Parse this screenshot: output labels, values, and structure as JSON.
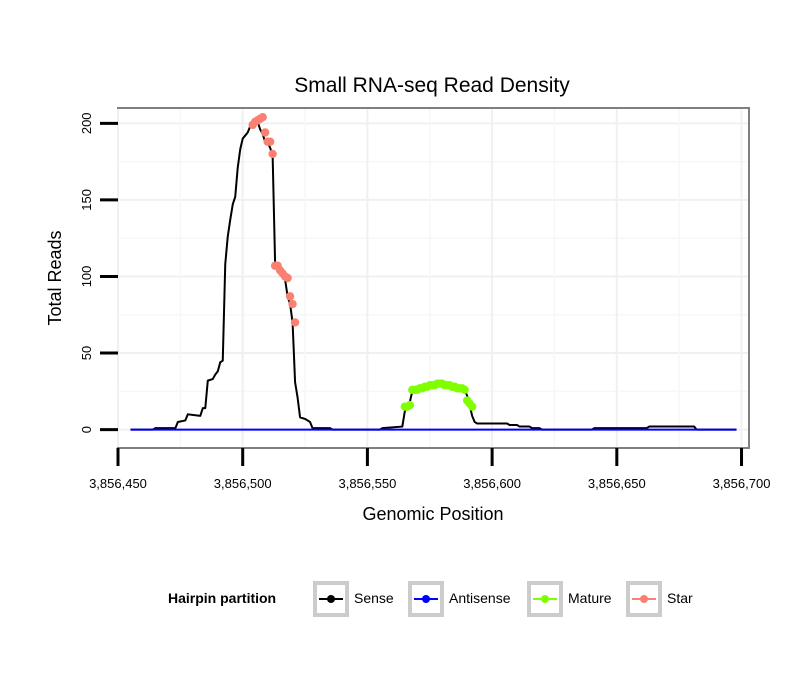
{
  "chart_data": {
    "type": "line",
    "title": "Small RNA-seq Read Density",
    "xlabel": "Genomic Position",
    "ylabel": "Total Reads",
    "xlim": [
      3856450,
      3856703
    ],
    "ylim": [
      -12,
      210
    ],
    "x_ticks": [
      3856450,
      3856500,
      3856550,
      3856600,
      3856650,
      3856700
    ],
    "x_tick_labels": [
      "3,856,450",
      "3,856,500",
      "3,856,550",
      "3,856,600",
      "3,856,650",
      "3,856,700"
    ],
    "y_ticks": [
      0,
      50,
      100,
      150,
      200
    ],
    "y_tick_labels": [
      "0",
      "50",
      "100",
      "150",
      "200"
    ],
    "grid": true,
    "legend": {
      "title": "Hairpin partition",
      "placement": "bottom",
      "entries": [
        {
          "name": "Sense",
          "color": "#000000"
        },
        {
          "name": "Antisense",
          "color": "#0000ff"
        },
        {
          "name": "Mature",
          "color": "#7fff00"
        },
        {
          "name": "Star",
          "color": "#fa8072"
        }
      ]
    },
    "series": [
      {
        "name": "Sense",
        "color": "#000000",
        "points": [
          [
            3856455,
            0
          ],
          [
            3856464,
            0
          ],
          [
            3856465,
            1
          ],
          [
            3856473,
            1
          ],
          [
            3856474,
            5
          ],
          [
            3856477,
            6
          ],
          [
            3856478,
            10
          ],
          [
            3856483,
            9
          ],
          [
            3856484,
            14
          ],
          [
            3856485,
            14
          ],
          [
            3856486,
            32
          ],
          [
            3856488,
            33
          ],
          [
            3856489,
            36
          ],
          [
            3856490,
            38
          ],
          [
            3856491,
            44
          ],
          [
            3856492,
            45
          ],
          [
            3856493,
            108
          ],
          [
            3856494,
            126
          ],
          [
            3856495,
            137
          ],
          [
            3856496,
            147
          ],
          [
            3856497,
            152
          ],
          [
            3856498,
            171
          ],
          [
            3856499,
            183
          ],
          [
            3856500,
            190
          ],
          [
            3856501,
            192
          ],
          [
            3856502,
            194
          ],
          [
            3856503,
            198
          ],
          [
            3856504,
            200
          ],
          [
            3856505,
            202
          ],
          [
            3856506,
            201
          ],
          [
            3856507,
            196
          ],
          [
            3856508,
            193
          ],
          [
            3856509,
            188
          ],
          [
            3856510,
            188
          ],
          [
            3856511,
            184
          ],
          [
            3856512,
            179
          ],
          [
            3856513,
            108
          ],
          [
            3856514,
            104
          ],
          [
            3856515,
            102
          ],
          [
            3856516,
            100
          ],
          [
            3856517,
            98
          ],
          [
            3856518,
            87
          ],
          [
            3856519,
            82
          ],
          [
            3856520,
            70
          ],
          [
            3856521,
            31
          ],
          [
            3856522,
            21
          ],
          [
            3856523,
            8
          ],
          [
            3856525,
            7
          ],
          [
            3856527,
            5
          ],
          [
            3856528,
            1
          ],
          [
            3856535,
            1
          ],
          [
            3856536,
            0
          ],
          [
            3856555,
            0
          ],
          [
            3856556,
            1
          ],
          [
            3856564,
            2
          ],
          [
            3856565,
            12
          ],
          [
            3856566,
            15
          ],
          [
            3856567,
            18
          ],
          [
            3856568,
            25
          ],
          [
            3856570,
            26
          ],
          [
            3856573,
            28
          ],
          [
            3856576,
            29
          ],
          [
            3856580,
            30
          ],
          [
            3856584,
            29
          ],
          [
            3856587,
            27
          ],
          [
            3856589,
            26
          ],
          [
            3856590,
            22
          ],
          [
            3856591,
            16
          ],
          [
            3856592,
            9
          ],
          [
            3856593,
            5
          ],
          [
            3856594,
            4
          ],
          [
            3856606,
            4
          ],
          [
            3856607,
            3
          ],
          [
            3856610,
            3
          ],
          [
            3856611,
            2
          ],
          [
            3856615,
            2
          ],
          [
            3856616,
            1
          ],
          [
            3856619,
            1
          ],
          [
            3856620,
            0
          ],
          [
            3856640,
            0
          ],
          [
            3856641,
            1
          ],
          [
            3856662,
            1
          ],
          [
            3856663,
            2
          ],
          [
            3856681,
            2
          ],
          [
            3856682,
            0
          ],
          [
            3856698,
            0
          ]
        ]
      },
      {
        "name": "Antisense",
        "color": "#0000ff",
        "points": [
          [
            3856455,
            0
          ],
          [
            3856698,
            0
          ]
        ]
      },
      {
        "name": "Mature",
        "color": "#7fff00",
        "points": [
          [
            3856565,
            15
          ],
          [
            3856566,
            15
          ],
          [
            3856567,
            16
          ],
          [
            3856568,
            26
          ],
          [
            3856569,
            26
          ],
          [
            3856570,
            26
          ],
          [
            3856571,
            27
          ],
          [
            3856572,
            27
          ],
          [
            3856573,
            28
          ],
          [
            3856574,
            28
          ],
          [
            3856575,
            29
          ],
          [
            3856576,
            29
          ],
          [
            3856577,
            29
          ],
          [
            3856578,
            30
          ],
          [
            3856579,
            30
          ],
          [
            3856580,
            30
          ],
          [
            3856581,
            29
          ],
          [
            3856582,
            29
          ],
          [
            3856583,
            29
          ],
          [
            3856584,
            28
          ],
          [
            3856585,
            28
          ],
          [
            3856586,
            27
          ],
          [
            3856587,
            27
          ],
          [
            3856588,
            27
          ],
          [
            3856589,
            26
          ],
          [
            3856590,
            19
          ],
          [
            3856591,
            17
          ],
          [
            3856592,
            15
          ]
        ]
      },
      {
        "name": "Star",
        "color": "#fa8072",
        "points": [
          [
            3856504,
            199
          ],
          [
            3856505,
            201
          ],
          [
            3856506,
            202
          ],
          [
            3856507,
            203
          ],
          [
            3856508,
            204
          ],
          [
            3856509,
            194
          ],
          [
            3856510,
            188
          ],
          [
            3856511,
            188
          ],
          [
            3856512,
            180
          ],
          [
            3856513,
            107
          ],
          [
            3856514,
            107
          ],
          [
            3856515,
            104
          ],
          [
            3856516,
            102
          ],
          [
            3856517,
            100
          ],
          [
            3856518,
            99
          ],
          [
            3856519,
            87
          ],
          [
            3856520,
            82
          ],
          [
            3856521,
            70
          ]
        ]
      }
    ]
  }
}
